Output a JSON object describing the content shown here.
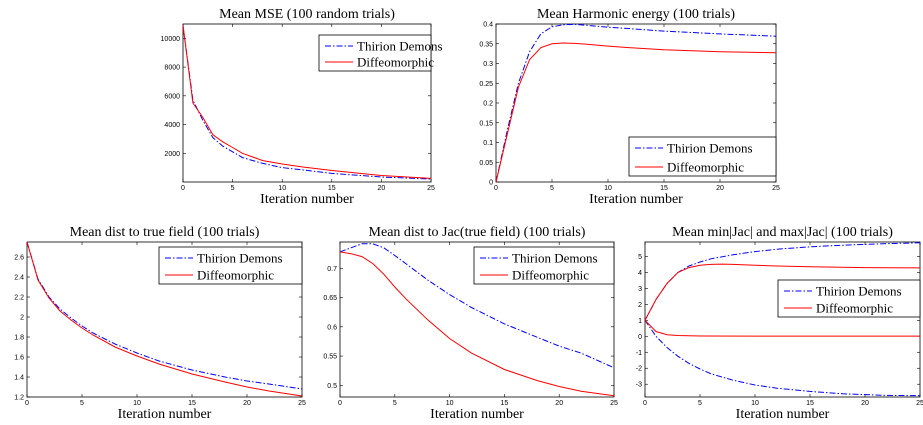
{
  "chart_data": [
    {
      "type": "line",
      "title": "Mean MSE (100 random trials)",
      "xlabel": "Iteration number",
      "ylabel": "",
      "xlim": [
        0,
        25
      ],
      "ylim": [
        0,
        11000
      ],
      "xticks": [
        0,
        5,
        10,
        15,
        20,
        25
      ],
      "yticks": [
        2000,
        4000,
        6000,
        8000,
        10000
      ],
      "legend_position": "top-right",
      "series": [
        {
          "name": "Thirion Demons",
          "color": "#0000ff",
          "dash": "dashdot",
          "x": [
            0,
            1,
            2,
            3,
            4,
            5,
            6,
            8,
            10,
            12,
            15,
            20,
            25
          ],
          "y": [
            10900,
            5700,
            4300,
            3100,
            2500,
            2100,
            1700,
            1300,
            1000,
            850,
            600,
            350,
            200
          ]
        },
        {
          "name": "Diffeomorphic",
          "color": "#ff0000",
          "dash": "solid",
          "x": [
            0,
            1,
            2,
            3,
            4,
            5,
            6,
            8,
            10,
            12,
            15,
            20,
            25
          ],
          "y": [
            10900,
            5500,
            4500,
            3300,
            2800,
            2400,
            2000,
            1500,
            1250,
            1050,
            800,
            450,
            250
          ]
        }
      ]
    },
    {
      "type": "line",
      "title": "Mean Harmonic energy (100 trials)",
      "xlabel": "Iteration number",
      "ylabel": "",
      "xlim": [
        0,
        25
      ],
      "ylim": [
        0,
        0.4
      ],
      "xticks": [
        0,
        5,
        10,
        15,
        20,
        25
      ],
      "yticks": [
        0,
        0.05,
        0.1,
        0.15,
        0.2,
        0.25,
        0.3,
        0.35,
        0.4
      ],
      "legend_position": "bottom-right",
      "series": [
        {
          "name": "Thirion Demons",
          "color": "#0000ff",
          "dash": "dashdot",
          "x": [
            0,
            1,
            2,
            3,
            4,
            5,
            6,
            7,
            8,
            10,
            12,
            15,
            20,
            25
          ],
          "y": [
            0,
            0.13,
            0.25,
            0.33,
            0.375,
            0.393,
            0.398,
            0.399,
            0.397,
            0.392,
            0.388,
            0.382,
            0.375,
            0.369
          ]
        },
        {
          "name": "Diffeomorphic",
          "color": "#ff0000",
          "dash": "solid",
          "x": [
            0,
            1,
            2,
            3,
            4,
            5,
            6,
            7,
            8,
            10,
            12,
            15,
            20,
            25
          ],
          "y": [
            0,
            0.12,
            0.24,
            0.31,
            0.34,
            0.35,
            0.352,
            0.351,
            0.349,
            0.344,
            0.34,
            0.335,
            0.33,
            0.327
          ]
        }
      ]
    },
    {
      "type": "line",
      "title": "Mean dist to true field (100 trials)",
      "xlabel": "Iteration number",
      "ylabel": "",
      "xlim": [
        0,
        25
      ],
      "ylim": [
        1.2,
        2.75
      ],
      "xticks": [
        0,
        5,
        10,
        15,
        20,
        25
      ],
      "yticks": [
        1.2,
        1.4,
        1.6,
        1.8,
        2,
        2.2,
        2.4,
        2.6
      ],
      "legend_position": "top-right",
      "series": [
        {
          "name": "Thirion Demons",
          "color": "#0000ff",
          "dash": "dashdot",
          "x": [
            0,
            1,
            2,
            3,
            4,
            5,
            6,
            8,
            10,
            12,
            15,
            18,
            20,
            22,
            25
          ],
          "y": [
            2.75,
            2.38,
            2.2,
            2.08,
            1.99,
            1.91,
            1.84,
            1.73,
            1.64,
            1.56,
            1.47,
            1.4,
            1.36,
            1.33,
            1.28
          ]
        },
        {
          "name": "Diffeomorphic",
          "color": "#ff0000",
          "dash": "solid",
          "x": [
            0,
            1,
            2,
            3,
            4,
            5,
            6,
            8,
            10,
            12,
            15,
            18,
            20,
            22,
            25
          ],
          "y": [
            2.75,
            2.37,
            2.19,
            2.06,
            1.97,
            1.89,
            1.82,
            1.7,
            1.61,
            1.53,
            1.43,
            1.35,
            1.3,
            1.26,
            1.21
          ]
        }
      ]
    },
    {
      "type": "line",
      "title": "Mean dist to Jac(true field) (100 trials)",
      "xlabel": "Iteration number",
      "ylabel": "",
      "xlim": [
        0,
        25
      ],
      "ylim": [
        0.48,
        0.745
      ],
      "xticks": [
        0,
        5,
        10,
        15,
        20,
        25
      ],
      "yticks": [
        0.5,
        0.55,
        0.6,
        0.65,
        0.7
      ],
      "legend_position": "top-right",
      "series": [
        {
          "name": "Thirion Demons",
          "color": "#0000ff",
          "dash": "dashdot",
          "x": [
            0,
            1,
            2,
            3,
            4,
            5,
            6,
            8,
            10,
            12,
            15,
            18,
            20,
            22,
            25
          ],
          "y": [
            0.728,
            0.735,
            0.742,
            0.742,
            0.735,
            0.722,
            0.708,
            0.68,
            0.655,
            0.633,
            0.605,
            0.582,
            0.567,
            0.555,
            0.53
          ]
        },
        {
          "name": "Diffeomorphic",
          "color": "#ff0000",
          "dash": "solid",
          "x": [
            0,
            1,
            2,
            3,
            4,
            5,
            6,
            8,
            10,
            12,
            15,
            18,
            20,
            22,
            25
          ],
          "y": [
            0.728,
            0.725,
            0.72,
            0.708,
            0.69,
            0.668,
            0.648,
            0.612,
            0.58,
            0.555,
            0.527,
            0.508,
            0.498,
            0.49,
            0.482
          ]
        }
      ]
    },
    {
      "type": "line",
      "title": "Mean min|Jac| and max|Jac| (100 trials)",
      "xlabel": "Iteration number",
      "ylabel": "",
      "xlim": [
        0,
        25
      ],
      "ylim": [
        -3.8,
        5.9
      ],
      "xticks": [
        0,
        5,
        10,
        15,
        20,
        25
      ],
      "yticks": [
        -3,
        -2,
        -1,
        0,
        1,
        2,
        3,
        4,
        5
      ],
      "legend_position": "middle-right",
      "series": [
        {
          "name": "Thirion Demons",
          "color": "#0000ff",
          "dash": "dashdot",
          "x": [
            0,
            1,
            2,
            3,
            4,
            5,
            6,
            8,
            10,
            12,
            15,
            18,
            20,
            22,
            25
          ],
          "y": [
            1,
            2.3,
            3.3,
            4,
            4.4,
            4.65,
            4.85,
            5.1,
            5.3,
            5.45,
            5.6,
            5.7,
            5.75,
            5.8,
            5.85
          ]
        },
        {
          "name": "Diffeomorphic",
          "color": "#ff0000",
          "dash": "solid",
          "x": [
            0,
            1,
            2,
            3,
            4,
            5,
            6,
            7,
            8,
            10,
            12,
            15,
            20,
            25
          ],
          "y": [
            1,
            2.3,
            3.3,
            4,
            4.3,
            4.45,
            4.5,
            4.52,
            4.5,
            4.45,
            4.4,
            4.35,
            4.3,
            4.28
          ]
        },
        {
          "name": "",
          "color": "#0000ff",
          "dash": "dashdot",
          "x": [
            0,
            1,
            2,
            3,
            4,
            5,
            6,
            8,
            10,
            12,
            15,
            18,
            20,
            22,
            25
          ],
          "y": [
            1,
            0,
            -0.7,
            -1.25,
            -1.7,
            -2.05,
            -2.35,
            -2.75,
            -3.05,
            -3.25,
            -3.45,
            -3.6,
            -3.65,
            -3.7,
            -3.72
          ]
        },
        {
          "name": "",
          "color": "#ff0000",
          "dash": "solid",
          "x": [
            0,
            1,
            2,
            3,
            5,
            10,
            15,
            20,
            25
          ],
          "y": [
            1,
            0.3,
            0.1,
            0.05,
            0.02,
            0.01,
            0.01,
            0.01,
            0.01
          ]
        }
      ]
    }
  ]
}
